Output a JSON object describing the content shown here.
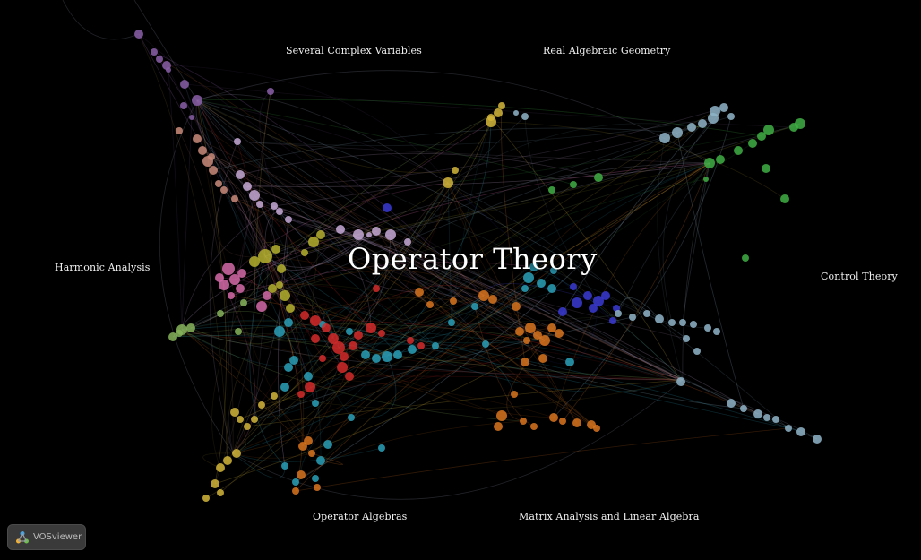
{
  "map": {
    "title": "Operator Theory",
    "labels": {
      "several_complex_variables": "Several Complex Variables",
      "real_algebraic_geometry": "Real Algebraic Geometry",
      "harmonic_analysis": "Harmonic Analysis",
      "control_theory": "Control Theory",
      "operator_algebras": "Operator Algebras",
      "matrix_analysis": "Matrix Analysis and Linear Algebra"
    },
    "cluster_colors": {
      "purple": "#8a5fa8",
      "salmon": "#c98a7a",
      "lavender": "#c7a9d6",
      "pink": "#d56aa8",
      "olive": "#b5b02e",
      "yellow": "#d2b53a",
      "green": "#3fae44",
      "lightgreen": "#86b35a",
      "blue": "#3a3ad4",
      "cyan": "#2aa0b8",
      "red": "#d42a2a",
      "orange": "#d9741e",
      "steel": "#8fb4c8",
      "grey": "#b8bfd0"
    }
  },
  "badge": {
    "text": "VOSviewer",
    "logo_icon": "vosviewer-logo-icon"
  }
}
